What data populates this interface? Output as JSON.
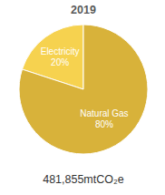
{
  "chart_data": {
    "type": "pie",
    "title": "2019",
    "categories": [
      "Electricity",
      "Natural Gas"
    ],
    "values": [
      20,
      80
    ],
    "value_labels": [
      "20%",
      "80%"
    ],
    "colors": [
      "#f6d24f",
      "#d8b23a"
    ],
    "data_labels": true,
    "annotations": [
      "481,855mtCO₂e"
    ]
  }
}
